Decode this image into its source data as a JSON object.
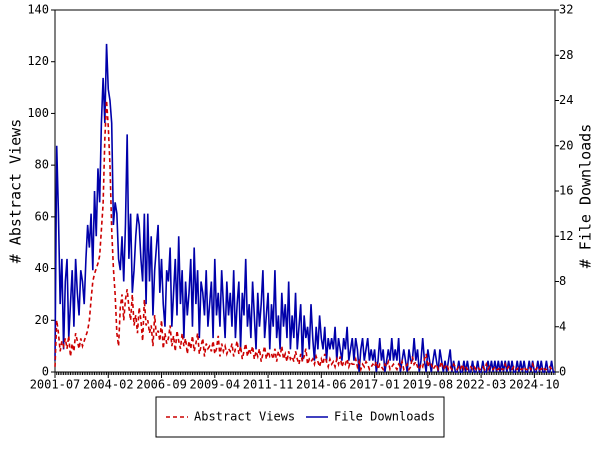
{
  "chart_data": {
    "type": "line",
    "x": [
      "2001-07",
      "2001-08",
      "2001-09",
      "2001-10",
      "2001-11",
      "2001-12",
      "2002-01",
      "2002-02",
      "2002-03",
      "2002-04",
      "2002-05",
      "2002-06",
      "2002-07",
      "2002-08",
      "2002-09",
      "2002-10",
      "2002-11",
      "2002-12",
      "2003-01",
      "2003-02",
      "2003-03",
      "2003-04",
      "2003-05",
      "2003-06",
      "2003-07",
      "2003-08",
      "2003-09",
      "2003-10",
      "2003-11",
      "2003-12",
      "2004-01",
      "2004-02",
      "2004-03",
      "2004-04",
      "2004-05",
      "2004-06",
      "2004-07",
      "2004-08",
      "2004-09",
      "2004-10",
      "2004-11",
      "2004-12",
      "2005-01",
      "2005-02",
      "2005-03",
      "2005-04",
      "2005-05",
      "2005-06",
      "2005-07",
      "2005-08",
      "2005-09",
      "2005-10",
      "2005-11",
      "2005-12",
      "2006-01",
      "2006-02",
      "2006-03",
      "2006-04",
      "2006-05",
      "2006-06",
      "2006-07",
      "2006-08",
      "2006-09",
      "2006-10",
      "2006-11",
      "2006-12",
      "2007-01",
      "2007-02",
      "2007-03",
      "2007-04",
      "2007-05",
      "2007-06",
      "2007-07",
      "2007-08",
      "2007-09",
      "2007-10",
      "2007-11",
      "2007-12",
      "2008-01",
      "2008-02",
      "2008-03",
      "2008-04",
      "2008-05",
      "2008-06",
      "2008-07",
      "2008-08",
      "2008-09",
      "2008-10",
      "2008-11",
      "2008-12",
      "2009-01",
      "2009-02",
      "2009-03",
      "2009-04",
      "2009-05",
      "2009-06",
      "2009-07",
      "2009-08",
      "2009-09",
      "2009-10",
      "2009-11",
      "2009-12",
      "2010-01",
      "2010-02",
      "2010-03",
      "2010-04",
      "2010-05",
      "2010-06",
      "2010-07",
      "2010-08",
      "2010-09",
      "2010-10",
      "2010-11",
      "2010-12",
      "2011-01",
      "2011-02",
      "2011-03",
      "2011-04",
      "2011-05",
      "2011-06",
      "2011-07",
      "2011-08",
      "2011-09",
      "2011-10",
      "2011-11",
      "2011-12",
      "2012-01",
      "2012-02",
      "2012-03",
      "2012-04",
      "2012-05",
      "2012-06",
      "2012-07",
      "2012-08",
      "2012-09",
      "2012-10",
      "2012-11",
      "2012-12",
      "2013-01",
      "2013-02",
      "2013-03",
      "2013-04",
      "2013-05",
      "2013-06",
      "2013-07",
      "2013-08",
      "2013-09",
      "2013-10",
      "2013-11",
      "2013-12",
      "2014-01",
      "2014-02",
      "2014-03",
      "2014-04",
      "2014-05",
      "2014-06",
      "2014-07",
      "2014-08",
      "2014-09",
      "2014-10",
      "2014-11",
      "2014-12",
      "2015-01",
      "2015-02",
      "2015-03",
      "2015-04",
      "2015-05",
      "2015-06",
      "2015-07",
      "2015-08",
      "2015-09",
      "2015-10",
      "2015-11",
      "2015-12",
      "2016-01",
      "2016-02",
      "2016-03",
      "2016-04",
      "2016-05",
      "2016-06",
      "2016-07",
      "2016-08",
      "2016-09",
      "2016-10",
      "2016-11",
      "2016-12",
      "2017-01",
      "2017-02",
      "2017-03",
      "2017-04",
      "2017-05",
      "2017-06",
      "2017-07",
      "2017-08",
      "2017-09",
      "2017-10",
      "2017-11",
      "2017-12",
      "2018-01",
      "2018-02",
      "2018-03",
      "2018-04",
      "2018-05",
      "2018-06",
      "2018-07",
      "2018-08",
      "2018-09",
      "2018-10",
      "2018-11",
      "2018-12",
      "2019-01",
      "2019-02",
      "2019-03",
      "2019-04",
      "2019-05",
      "2019-06",
      "2019-07",
      "2019-08",
      "2019-09",
      "2019-10",
      "2019-11",
      "2019-12",
      "2020-01",
      "2020-02",
      "2020-03",
      "2020-04",
      "2020-05",
      "2020-06",
      "2020-07",
      "2020-08",
      "2020-09",
      "2020-10",
      "2020-11",
      "2020-12",
      "2021-01",
      "2021-02",
      "2021-03",
      "2021-04",
      "2021-05",
      "2021-06",
      "2021-07",
      "2021-08",
      "2021-09",
      "2021-10",
      "2021-11",
      "2021-12",
      "2022-01",
      "2022-02",
      "2022-03",
      "2022-04",
      "2022-05",
      "2022-06",
      "2022-07",
      "2022-08",
      "2022-09",
      "2022-10",
      "2022-11",
      "2022-12",
      "2023-01",
      "2023-02",
      "2023-03",
      "2023-04",
      "2023-05",
      "2023-06",
      "2023-07",
      "2023-08",
      "2023-09",
      "2023-10",
      "2023-11",
      "2023-12",
      "2024-01",
      "2024-02",
      "2024-03",
      "2024-04",
      "2024-05",
      "2024-06",
      "2024-07",
      "2024-08",
      "2024-09",
      "2024-10",
      "2024-11",
      "2024-12",
      "2025-01",
      "2025-02",
      "2025-03",
      "2025-04",
      "2025-05",
      "2025-06",
      "2025-07",
      "2025-08",
      "2025-09",
      "2025-10"
    ],
    "xticks": [
      "2001-07",
      "2004-02",
      "2006-09",
      "2009-04",
      "2011-11",
      "2014-06",
      "2017-01",
      "2019-08",
      "2022-03",
      "2024-10"
    ],
    "ylabel": "# Abstract Views",
    "y2label": "# File Downloads",
    "ylim": [
      0,
      140
    ],
    "yticks": [
      0,
      20,
      40,
      60,
      80,
      100,
      120,
      140
    ],
    "y2lim": [
      0,
      32
    ],
    "y2ticks": [
      0,
      4,
      8,
      12,
      16,
      20,
      24,
      28,
      32
    ],
    "legend": "bottom",
    "series": [
      {
        "name": "Abstract Views",
        "color": "#cc0000",
        "dashed": true,
        "values": [
          2,
          20,
          15,
          8,
          12,
          10,
          13,
          9,
          14,
          6,
          11,
          8,
          15,
          12,
          9,
          13,
          10,
          12,
          14,
          16,
          20,
          28,
          35,
          38,
          40,
          42,
          45,
          55,
          65,
          90,
          105,
          95,
          80,
          55,
          40,
          30,
          15,
          10,
          25,
          30,
          20,
          28,
          32,
          25,
          20,
          30,
          18,
          22,
          15,
          25,
          20,
          12,
          28,
          18,
          20,
          15,
          18,
          10,
          22,
          14,
          16,
          12,
          20,
          9,
          15,
          11,
          13,
          18,
          10,
          14,
          8,
          16,
          12,
          9,
          15,
          10,
          13,
          7,
          12,
          9,
          14,
          8,
          11,
          15,
          7,
          10,
          13,
          6,
          11,
          9,
          10,
          8,
          12,
          7,
          9,
          14,
          6,
          11,
          8,
          10,
          7,
          9,
          8,
          11,
          6,
          9,
          12,
          7,
          10,
          5,
          8,
          11,
          6,
          9,
          7,
          10,
          5,
          8,
          6,
          9,
          4,
          7,
          10,
          5,
          8,
          6,
          7,
          5,
          9,
          4,
          8,
          6,
          10,
          5,
          7,
          4,
          8,
          5,
          6,
          4,
          8,
          5,
          3,
          7,
          4,
          6,
          9,
          3,
          5,
          4,
          5,
          3,
          6,
          4,
          2,
          5,
          3,
          7,
          4,
          2,
          5,
          3,
          4,
          2,
          5,
          3,
          6,
          2,
          4,
          3,
          5,
          2,
          4,
          3,
          3,
          5,
          2,
          4,
          1,
          3,
          2,
          4,
          3,
          1,
          2,
          3,
          2,
          4,
          1,
          3,
          2,
          1,
          3,
          2,
          4,
          1,
          2,
          3,
          2,
          1,
          3,
          2,
          4,
          1,
          2,
          3,
          1,
          2,
          6,
          3,
          4,
          2,
          1,
          3,
          2,
          5,
          7,
          2,
          4,
          3,
          1,
          2,
          3,
          1,
          2,
          4,
          1,
          2,
          3,
          1,
          2,
          1,
          3,
          2,
          1,
          2,
          1,
          3,
          1,
          2,
          1,
          1,
          2,
          1,
          2,
          1,
          2,
          1,
          1,
          2,
          1,
          3,
          1,
          2,
          1,
          1,
          2,
          1,
          1,
          2,
          1,
          1,
          3,
          1,
          2,
          1,
          1,
          2,
          1,
          1,
          2,
          1,
          1,
          2,
          1,
          1,
          2,
          1,
          3,
          1,
          1,
          2,
          1,
          1,
          2,
          1,
          1,
          1,
          2,
          1,
          1,
          1
        ]
      },
      {
        "name": "File Downloads",
        "color": "#0000aa",
        "axis": "y2",
        "values": [
          1,
          20,
          14,
          6,
          10,
          2,
          8,
          10,
          3,
          6,
          9,
          4,
          10,
          7,
          5,
          9,
          8,
          6,
          10,
          13,
          11,
          14,
          9,
          16,
          12,
          18,
          15,
          22,
          26,
          22,
          29,
          25,
          24,
          22,
          13,
          15,
          14,
          10,
          9,
          12,
          8,
          13,
          21,
          10,
          14,
          7,
          9,
          12,
          14,
          13,
          10,
          8,
          14,
          6,
          14,
          8,
          12,
          5,
          9,
          11,
          13,
          7,
          10,
          6,
          4,
          9,
          8,
          11,
          4,
          7,
          10,
          5,
          12,
          6,
          9,
          3,
          8,
          5,
          7,
          10,
          4,
          11,
          6,
          9,
          3,
          8,
          7,
          5,
          9,
          4,
          6,
          8,
          3,
          10,
          5,
          7,
          4,
          9,
          6,
          3,
          8,
          5,
          7,
          4,
          9,
          3,
          6,
          8,
          2,
          7,
          5,
          10,
          4,
          6,
          3,
          8,
          5,
          2,
          7,
          4,
          6,
          9,
          3,
          5,
          7,
          2,
          6,
          4,
          9,
          3,
          5,
          2,
          7,
          4,
          6,
          3,
          8,
          2,
          5,
          3,
          7,
          2,
          4,
          6,
          1,
          5,
          3,
          4,
          2,
          6,
          3,
          1,
          4,
          2,
          5,
          3,
          2,
          4,
          1,
          3,
          2,
          3,
          2,
          4,
          1,
          3,
          2,
          1,
          3,
          2,
          4,
          1,
          2,
          3,
          1,
          3,
          2,
          0,
          2,
          3,
          1,
          2,
          3,
          1,
          2,
          1,
          2,
          0,
          1,
          3,
          1,
          2,
          0,
          1,
          2,
          1,
          3,
          1,
          2,
          1,
          3,
          0,
          1,
          2,
          1,
          0,
          2,
          1,
          1,
          3,
          1,
          2,
          0,
          1,
          3,
          1,
          0,
          2,
          1,
          0,
          1,
          2,
          1,
          0,
          2,
          1,
          0,
          1,
          0,
          1,
          2,
          0,
          1,
          0,
          0,
          1,
          0,
          0,
          1,
          0,
          1,
          0,
          0,
          1,
          0,
          0,
          1,
          0,
          0,
          1,
          0,
          0,
          1,
          0,
          1,
          0,
          1,
          0,
          1,
          0,
          1,
          0,
          1,
          0,
          1,
          0,
          1,
          0,
          0,
          1,
          0,
          1,
          0,
          1,
          0,
          0,
          1,
          0,
          1,
          0,
          0,
          1,
          0,
          1,
          0,
          0,
          1,
          0,
          0,
          1,
          0,
          0
        ]
      }
    ]
  }
}
